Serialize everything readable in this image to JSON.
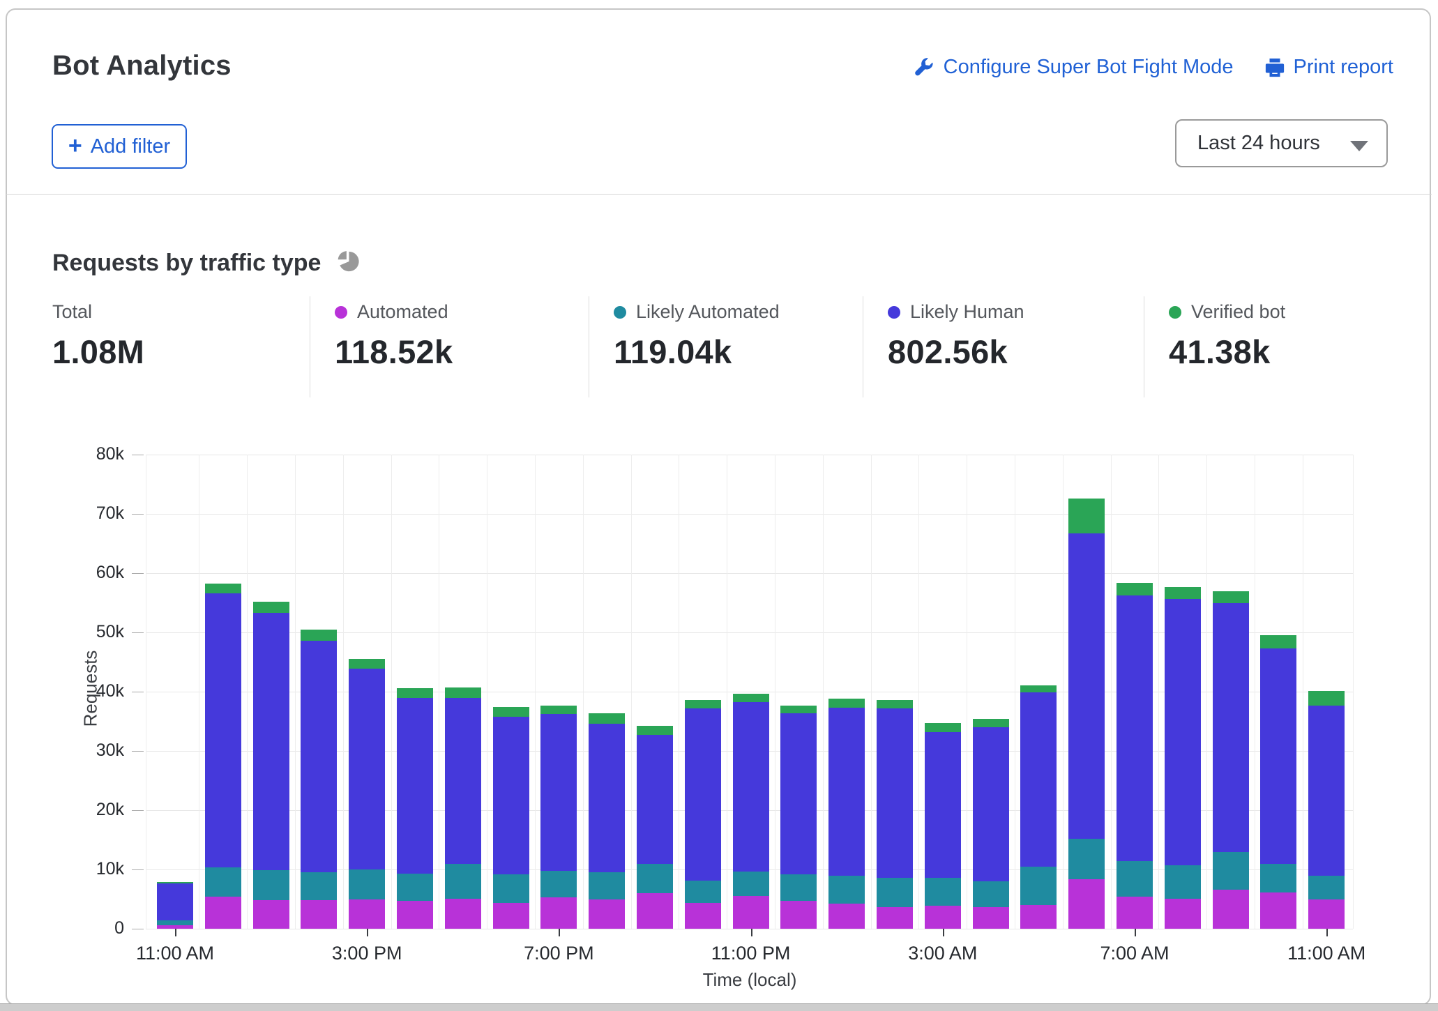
{
  "header": {
    "title": "Bot Analytics",
    "configure_link": "Configure Super Bot Fight Mode",
    "print_link": "Print report",
    "add_filter_label": "Add filter",
    "time_range_value": "Last 24 hours"
  },
  "section": {
    "title": "Requests by traffic type"
  },
  "stats": [
    {
      "label": "Total",
      "value": "1.08M",
      "color": null
    },
    {
      "label": "Automated",
      "value": "118.52k",
      "color": "#b832d8"
    },
    {
      "label": "Likely Automated",
      "value": "119.04k",
      "color": "#1f8ba0"
    },
    {
      "label": "Likely Human",
      "value": "802.56k",
      "color": "#4539db"
    },
    {
      "label": "Verified bot",
      "value": "41.38k",
      "color": "#2aa556"
    }
  ],
  "icons": {
    "wrench": "wrench-icon",
    "printer": "printer-icon",
    "plus": "+",
    "pie_color": "#999999"
  },
  "chart_data": {
    "type": "bar",
    "stacked": true,
    "title": "Requests by traffic type",
    "xlabel": "Time (local)",
    "ylabel": "Requests",
    "ylim": [
      0,
      80000
    ],
    "grid": true,
    "y_tick_labels": [
      "0",
      "10k",
      "20k",
      "30k",
      "40k",
      "50k",
      "60k",
      "70k",
      "80k"
    ],
    "x": [
      "11:00 AM",
      "12:00 PM",
      "1:00 PM",
      "2:00 PM",
      "3:00 PM",
      "4:00 PM",
      "5:00 PM",
      "6:00 PM",
      "7:00 PM",
      "8:00 PM",
      "9:00 PM",
      "10:00 PM",
      "11:00 PM",
      "12:00 AM",
      "1:00 AM",
      "2:00 AM",
      "3:00 AM",
      "4:00 AM",
      "5:00 AM",
      "6:00 AM",
      "7:00 AM",
      "8:00 AM",
      "9:00 AM",
      "10:00 AM",
      "11:00 AM"
    ],
    "x_tick_every": 4,
    "series": [
      {
        "name": "Automated",
        "color": "#b832d8",
        "values": [
          600,
          5400,
          4800,
          4800,
          4900,
          4700,
          5100,
          4300,
          5300,
          4900,
          6000,
          4400,
          5500,
          4700,
          4200,
          3600,
          3900,
          3700,
          4000,
          8300,
          5400,
          5100,
          6600,
          6100,
          4900
        ]
      },
      {
        "name": "Likely Automated",
        "color": "#1f8ba0",
        "values": [
          800,
          5000,
          5100,
          4700,
          5100,
          4600,
          5800,
          4900,
          4500,
          4600,
          4900,
          3700,
          4200,
          4500,
          4800,
          5000,
          4700,
          4300,
          6500,
          6900,
          6000,
          5600,
          6300,
          4800,
          4000
        ]
      },
      {
        "name": "Likely Human",
        "color": "#4539db",
        "values": [
          6200,
          46200,
          43400,
          39100,
          33900,
          29600,
          28100,
          26600,
          26400,
          25100,
          21800,
          29100,
          28500,
          27100,
          28300,
          28600,
          24600,
          26000,
          29400,
          51500,
          44800,
          45000,
          42100,
          36400,
          28700
        ]
      },
      {
        "name": "Verified bot",
        "color": "#2aa556",
        "values": [
          300,
          1600,
          1900,
          1900,
          1600,
          1700,
          1700,
          1600,
          1500,
          1800,
          1500,
          1400,
          1400,
          1400,
          1500,
          1400,
          1500,
          1400,
          1200,
          5900,
          2100,
          2000,
          2000,
          2200,
          2500
        ]
      }
    ]
  }
}
